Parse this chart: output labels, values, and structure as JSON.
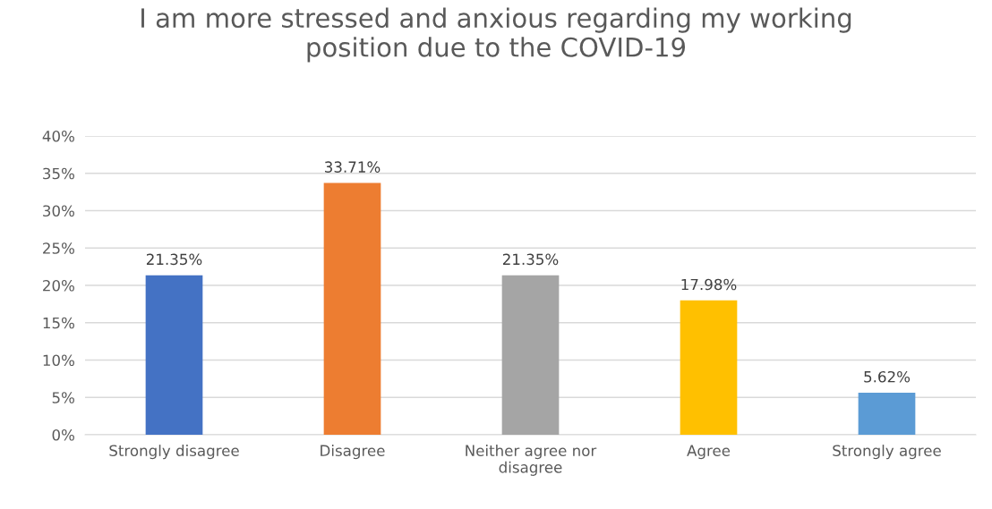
{
  "chart_data": {
    "type": "bar",
    "title": "I am more stressed and anxious regarding my working\nposition due to the COVID-19",
    "categories": [
      "Strongly disagree",
      "Disagree",
      "Neither agree nor\ndisagree",
      "Agree",
      "Strongly agree"
    ],
    "values": [
      21.35,
      33.71,
      21.35,
      17.98,
      5.62
    ],
    "colors": [
      "#4472c4",
      "#ed7d31",
      "#a5a5a5",
      "#ffc000",
      "#5b9bd5"
    ],
    "value_labels": [
      "21.35%",
      "33.71%",
      "21.35%",
      "17.98%",
      "5.62%"
    ],
    "ylim": [
      0,
      40
    ],
    "yticks": [
      {
        "value": 0,
        "label": "0%"
      },
      {
        "value": 5,
        "label": "5%"
      },
      {
        "value": 10,
        "label": "10%"
      },
      {
        "value": 15,
        "label": "15%"
      },
      {
        "value": 20,
        "label": "20%"
      },
      {
        "value": 25,
        "label": "25%"
      },
      {
        "value": 30,
        "label": "30%"
      },
      {
        "value": 35,
        "label": "35%"
      },
      {
        "value": 40,
        "label": "40%"
      }
    ],
    "grid": "y",
    "legend": false
  }
}
